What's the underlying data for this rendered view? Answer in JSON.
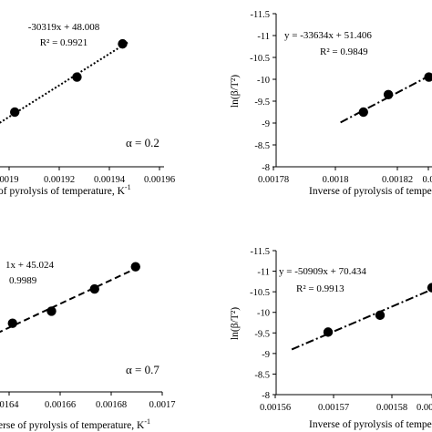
{
  "chart_data": [
    {
      "type": "scatter",
      "panel": "top-left",
      "x": [
        0.001888,
        0.001918,
        0.00194
      ],
      "y": [
        -9.25,
        -10.05,
        -10.81
      ],
      "trendline": {
        "style": "dotted",
        "slope": -30319,
        "intercept": 48.008
      },
      "equation": "-30319x + 48.008",
      "r2": "R² = 0.9921",
      "alpha_label": "α = 0.2",
      "xlabel": "of pyrolysis of temperature, K",
      "xlabel_sup": "-1",
      "ylabel": "",
      "xlim": [
        0.00188,
        0.00196
      ],
      "ylim": [
        -11.5,
        -8
      ],
      "x_ticks": [
        "0019",
        "0.00192",
        "0.00194",
        "0.00196"
      ],
      "y_ticks": []
    },
    {
      "type": "scatter",
      "panel": "top-right",
      "x": [
        0.001808,
        0.001816,
        0.001829
      ],
      "y": [
        -9.25,
        -9.65,
        -10.05
      ],
      "trendline": {
        "style": "dash-dot",
        "slope": -33634,
        "intercept": 51.406
      },
      "equation": "y = -33634x + 51.406",
      "r2": "R² = 0.9849",
      "alpha_label": "",
      "xlabel": "Inverse of pyrolysis of tempe",
      "ylabel": "ln(β/T²)",
      "xlim": [
        0.00178,
        0.00183
      ],
      "ylim": [
        -11.5,
        -8
      ],
      "x_ticks": [
        "0.00178",
        "0.0018",
        "0.00182",
        "0.0"
      ],
      "y_ticks": [
        "-11.5",
        "-11",
        "-10.5",
        "-10",
        "-9.5",
        "-9",
        "-8.5",
        "-8"
      ]
    },
    {
      "type": "scatter",
      "panel": "bottom-left",
      "x": [
        0.001627,
        0.001646,
        0.001667,
        0.001687
      ],
      "y": [
        -9.7,
        -10.0,
        -10.55,
        -11.1
      ],
      "trendline": {
        "style": "dashed"
      },
      "equation": "1x + 45.024",
      "r2": "0.9989",
      "alpha_label": "α = 0.7",
      "xlabel": "erse of pyrolysis of temperature, K",
      "xlabel_sup": "-1",
      "ylabel": "",
      "xlim": [
        0.00162,
        0.0017
      ],
      "ylim": [
        -11.5,
        -8
      ],
      "x_ticks": [
        "0164",
        "0.00166",
        "0.00168",
        "0.0017"
      ],
      "y_ticks": []
    },
    {
      "type": "scatter",
      "panel": "bottom-right",
      "x": [
        0.00157,
        0.00158,
        0.00159
      ],
      "y": [
        -9.52,
        -9.93,
        -10.6
      ],
      "trendline": {
        "style": "dash-dot",
        "slope": -50909,
        "intercept": 70.434
      },
      "equation": "y = -50909x + 70.434",
      "r2": "R² = 0.9913",
      "alpha_label": "",
      "xlabel": "Inverse of pyrolysis of temper",
      "ylabel": "ln(β/T²)",
      "xlim": [
        0.00156,
        0.00159
      ],
      "ylim": [
        -11.5,
        -8
      ],
      "x_ticks": [
        "0.00156",
        "0.00157",
        "0.00158",
        "0.00159"
      ],
      "y_ticks": [
        "-11.5",
        "-11",
        "-10.5",
        "-10",
        "-9.5",
        "-9",
        "-8.5",
        "-8"
      ]
    }
  ]
}
